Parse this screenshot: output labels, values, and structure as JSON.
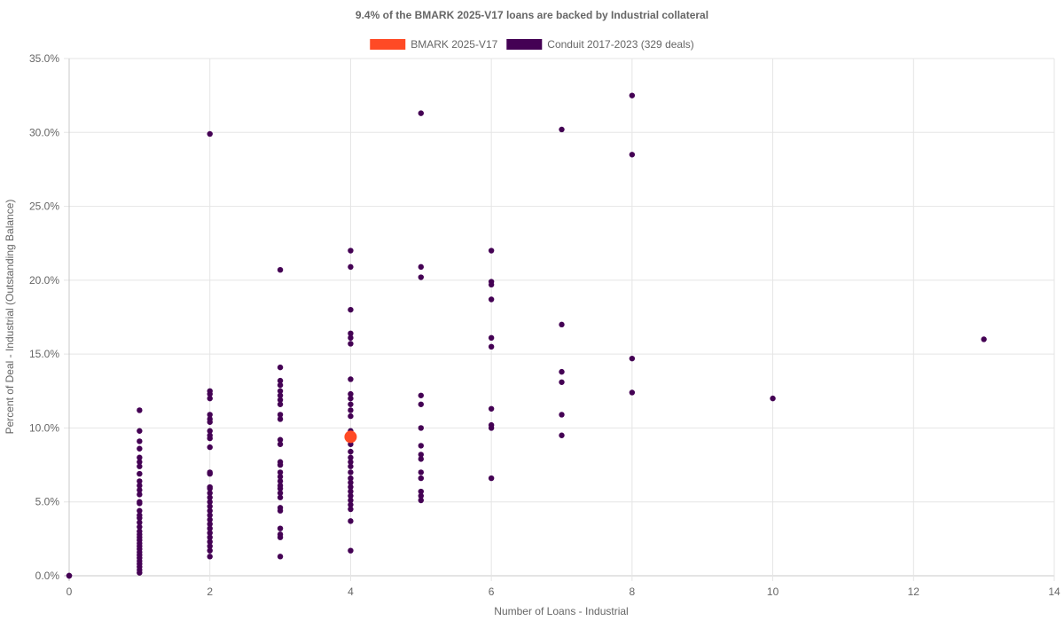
{
  "chart_data": {
    "type": "scatter",
    "title": "9.4% of the BMARK 2025-V17 loans are backed by Industrial collateral",
    "xlabel": "Number of Loans - Industrial",
    "ylabel": "Percent of Deal - Industrial (Outstanding Balance)",
    "xlim": [
      0,
      14
    ],
    "ylim": [
      0,
      35
    ],
    "x_ticks": [
      "0",
      "2",
      "4",
      "6",
      "8",
      "10",
      "12",
      "14"
    ],
    "y_ticks": [
      "0.0%",
      "5.0%",
      "10.0%",
      "15.0%",
      "20.0%",
      "25.0%",
      "30.0%",
      "35.0%"
    ],
    "grid": true,
    "legend_position": "top-center",
    "series": [
      {
        "name": "BMARK 2025-V17",
        "color": "#ff4a25",
        "points": [
          [
            4,
            9.4
          ]
        ]
      },
      {
        "name": "Conduit 2017-2023 (329 deals)",
        "color": "#440154",
        "points": [
          [
            0,
            0
          ],
          [
            0,
            0
          ],
          [
            0,
            0
          ],
          [
            1,
            0.2
          ],
          [
            1,
            0.4
          ],
          [
            1,
            0.6
          ],
          [
            1,
            0.8
          ],
          [
            1,
            1.0
          ],
          [
            1,
            1.2
          ],
          [
            1,
            1.4
          ],
          [
            1,
            1.6
          ],
          [
            1,
            1.8
          ],
          [
            1,
            2.0
          ],
          [
            1,
            2.2
          ],
          [
            1,
            2.4
          ],
          [
            1,
            2.6
          ],
          [
            1,
            2.8
          ],
          [
            1,
            3.0
          ],
          [
            1,
            3.3
          ],
          [
            1,
            3.6
          ],
          [
            1,
            3.9
          ],
          [
            1,
            4.1
          ],
          [
            1,
            4.4
          ],
          [
            1,
            4.9
          ],
          [
            1,
            5.0
          ],
          [
            1,
            5.5
          ],
          [
            1,
            5.8
          ],
          [
            1,
            6.1
          ],
          [
            1,
            6.4
          ],
          [
            1,
            6.9
          ],
          [
            1,
            7.4
          ],
          [
            1,
            7.7
          ],
          [
            1,
            8.0
          ],
          [
            1,
            8.6
          ],
          [
            1,
            9.1
          ],
          [
            1,
            9.8
          ],
          [
            1,
            11.2
          ],
          [
            2,
            1.3
          ],
          [
            2,
            1.7
          ],
          [
            2,
            2.0
          ],
          [
            2,
            2.3
          ],
          [
            2,
            2.6
          ],
          [
            2,
            2.9
          ],
          [
            2,
            3.2
          ],
          [
            2,
            3.5
          ],
          [
            2,
            3.8
          ],
          [
            2,
            4.1
          ],
          [
            2,
            4.4
          ],
          [
            2,
            4.7
          ],
          [
            2,
            5.0
          ],
          [
            2,
            5.3
          ],
          [
            2,
            5.6
          ],
          [
            2,
            5.9
          ],
          [
            2,
            6.0
          ],
          [
            2,
            6.9
          ],
          [
            2,
            7.0
          ],
          [
            2,
            8.7
          ],
          [
            2,
            9.3
          ],
          [
            2,
            9.5
          ],
          [
            2,
            9.8
          ],
          [
            2,
            10.4
          ],
          [
            2,
            10.6
          ],
          [
            2,
            10.9
          ],
          [
            2,
            12.0
          ],
          [
            2,
            12.3
          ],
          [
            2,
            12.5
          ],
          [
            2,
            29.9
          ],
          [
            3,
            1.3
          ],
          [
            3,
            2.6
          ],
          [
            3,
            2.8
          ],
          [
            3,
            3.2
          ],
          [
            3,
            4.4
          ],
          [
            3,
            4.6
          ],
          [
            3,
            5.3
          ],
          [
            3,
            5.6
          ],
          [
            3,
            5.9
          ],
          [
            3,
            6.1
          ],
          [
            3,
            6.4
          ],
          [
            3,
            6.7
          ],
          [
            3,
            7.0
          ],
          [
            3,
            7.5
          ],
          [
            3,
            7.7
          ],
          [
            3,
            8.9
          ],
          [
            3,
            9.2
          ],
          [
            3,
            10.6
          ],
          [
            3,
            10.9
          ],
          [
            3,
            11.6
          ],
          [
            3,
            11.9
          ],
          [
            3,
            12.2
          ],
          [
            3,
            12.5
          ],
          [
            3,
            12.9
          ],
          [
            3,
            13.2
          ],
          [
            3,
            14.1
          ],
          [
            3,
            20.7
          ],
          [
            4,
            1.7
          ],
          [
            4,
            3.7
          ],
          [
            4,
            4.5
          ],
          [
            4,
            4.8
          ],
          [
            4,
            5.1
          ],
          [
            4,
            5.4
          ],
          [
            4,
            5.7
          ],
          [
            4,
            6.0
          ],
          [
            4,
            6.3
          ],
          [
            4,
            6.6
          ],
          [
            4,
            7.0
          ],
          [
            4,
            7.4
          ],
          [
            4,
            7.7
          ],
          [
            4,
            8.0
          ],
          [
            4,
            8.4
          ],
          [
            4,
            8.9
          ],
          [
            4,
            9.3
          ],
          [
            4,
            9.8
          ],
          [
            4,
            10.8
          ],
          [
            4,
            11.2
          ],
          [
            4,
            11.6
          ],
          [
            4,
            12.0
          ],
          [
            4,
            12.3
          ],
          [
            4,
            13.3
          ],
          [
            4,
            15.7
          ],
          [
            4,
            16.1
          ],
          [
            4,
            16.4
          ],
          [
            4,
            18.0
          ],
          [
            4,
            20.9
          ],
          [
            4,
            22.0
          ],
          [
            5,
            5.1
          ],
          [
            5,
            5.4
          ],
          [
            5,
            5.7
          ],
          [
            5,
            6.6
          ],
          [
            5,
            7.0
          ],
          [
            5,
            7.9
          ],
          [
            5,
            8.2
          ],
          [
            5,
            8.8
          ],
          [
            5,
            10.0
          ],
          [
            5,
            11.6
          ],
          [
            5,
            12.2
          ],
          [
            5,
            20.2
          ],
          [
            5,
            20.9
          ],
          [
            5,
            31.3
          ],
          [
            6,
            6.6
          ],
          [
            6,
            10.0
          ],
          [
            6,
            10.2
          ],
          [
            6,
            11.3
          ],
          [
            6,
            15.5
          ],
          [
            6,
            16.1
          ],
          [
            6,
            18.7
          ],
          [
            6,
            19.7
          ],
          [
            6,
            19.9
          ],
          [
            6,
            22.0
          ],
          [
            7,
            9.5
          ],
          [
            7,
            10.9
          ],
          [
            7,
            13.1
          ],
          [
            7,
            13.8
          ],
          [
            7,
            17.0
          ],
          [
            7,
            30.2
          ],
          [
            8,
            12.4
          ],
          [
            8,
            14.7
          ],
          [
            8,
            28.5
          ],
          [
            8,
            32.5
          ],
          [
            10,
            12.0
          ],
          [
            13,
            16.0
          ]
        ]
      }
    ]
  }
}
